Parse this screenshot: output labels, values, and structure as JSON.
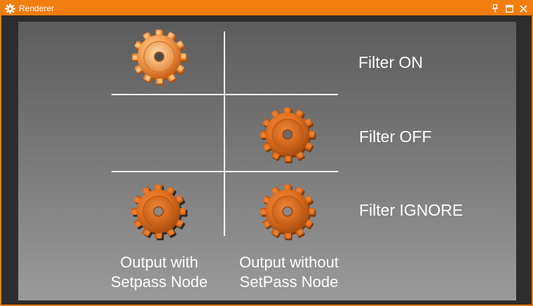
{
  "window": {
    "title": "Renderer",
    "accent_color": "#f27d0f",
    "icons": {
      "app": "gear-icon",
      "pin": "pin-icon",
      "maximize": "maximize-icon",
      "close": "close-icon"
    }
  },
  "scene": {
    "rows": [
      {
        "label": "Filter ON"
      },
      {
        "label": "Filter OFF"
      },
      {
        "label": "Filter IGNORE"
      }
    ],
    "columns": [
      {
        "caption_line1": "Output with",
        "caption_line2": "Setpass Node"
      },
      {
        "caption_line1": "Output without",
        "caption_line2": "SetPass Node"
      }
    ],
    "gear_color": "#e8762a"
  }
}
